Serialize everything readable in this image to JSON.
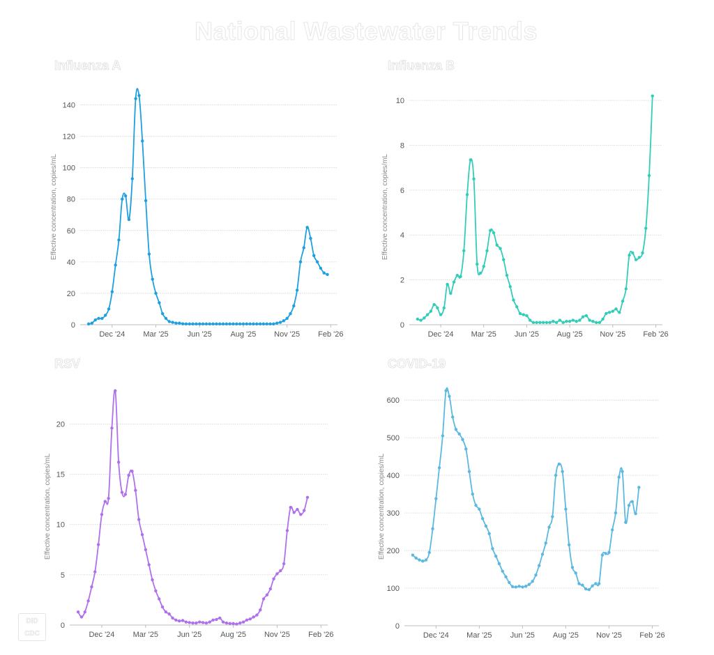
{
  "page": {
    "title": "National Wastewater Trends"
  },
  "logo": {
    "line1": "DID",
    "line2": "CDC"
  },
  "chart_data": [
    {
      "type": "line",
      "title": "Influenza A",
      "ylabel": "Effective concentration, copies/mL",
      "ylim": [
        0,
        150
      ],
      "yticks": [
        0,
        20,
        40,
        60,
        80,
        100,
        120,
        140
      ],
      "xticks": [
        {
          "label": "Dec '24",
          "t": 7.0
        },
        {
          "label": "Mar '25",
          "t": 20.0
        },
        {
          "label": "Jun '25",
          "t": 33.0
        },
        {
          "label": "Aug '25",
          "t": 46.0
        },
        {
          "label": "Nov '25",
          "t": 59.0
        },
        {
          "label": "Feb '26",
          "t": 72.0
        }
      ],
      "xlim": [
        -2.5,
        74
      ],
      "grid": true,
      "color": "#1ea0e0",
      "series": [
        {
          "values": [
            0.5,
            1,
            3,
            4,
            4,
            6,
            10,
            21,
            38,
            54,
            80,
            82,
            67,
            93,
            144,
            146,
            117,
            79,
            45,
            29,
            20,
            14,
            7,
            4,
            2,
            1.5,
            1,
            1,
            0.6,
            0.5,
            0.5,
            0.5,
            0.5,
            0.5,
            0.5,
            0.5,
            0.5,
            0.5,
            0.5,
            0.5,
            0.5,
            0.5,
            0.5,
            0.5,
            0.5,
            0.5,
            0.5,
            0.5,
            0.5,
            0.5,
            0.5,
            0.5,
            0.5,
            0.5,
            0.5,
            0.5,
            1,
            1.5,
            2.5,
            4,
            7,
            12,
            22,
            40,
            49,
            62,
            55,
            44,
            40,
            36,
            33,
            32
          ]
        }
      ]
    },
    {
      "type": "line",
      "title": "Influenza B",
      "ylabel": "Effective concentration, copies/mL",
      "ylim": [
        0,
        10.5
      ],
      "yticks": [
        0,
        2,
        4,
        6,
        8,
        10
      ],
      "xticks": [
        {
          "label": "Dec '24",
          "t": 7.0
        },
        {
          "label": "Mar '25",
          "t": 20.0
        },
        {
          "label": "Jun '25",
          "t": 33.0
        },
        {
          "label": "Aug '25",
          "t": 46.0
        },
        {
          "label": "Nov '25",
          "t": 59.0
        },
        {
          "label": "Feb '26",
          "t": 72.0
        }
      ],
      "xlim": [
        -2.5,
        74
      ],
      "grid": true,
      "color": "#32cdb9",
      "series": [
        {
          "values": [
            0.25,
            0.2,
            0.3,
            0.45,
            0.6,
            0.9,
            0.75,
            0.45,
            0.75,
            1.8,
            1.4,
            1.9,
            2.2,
            2.15,
            3.3,
            5.8,
            7.35,
            6.5,
            2.7,
            2.3,
            2.6,
            3.3,
            4.2,
            4.1,
            3.55,
            3.4,
            2.9,
            2.2,
            1.7,
            1.1,
            0.8,
            0.5,
            0.45,
            0.4,
            0.2,
            0.1,
            0.1,
            0.1,
            0.1,
            0.1,
            0.1,
            0.15,
            0.1,
            0.2,
            0.1,
            0.15,
            0.15,
            0.2,
            0.15,
            0.2,
            0.35,
            0.4,
            0.2,
            0.15,
            0.1,
            0.1,
            0.25,
            0.5,
            0.55,
            0.6,
            0.7,
            0.55,
            1.05,
            1.6,
            3.1,
            3.2,
            2.9,
            3.0,
            3.2,
            4.3,
            6.65,
            10.2
          ]
        }
      ]
    },
    {
      "type": "line",
      "title": "RSV",
      "ylabel": "Effective concentration, copies/mL",
      "ylim": [
        0,
        23.5
      ],
      "yticks": [
        0,
        5,
        10,
        15,
        20
      ],
      "xticks": [
        {
          "label": "Dec '24",
          "t": 7.0
        },
        {
          "label": "Mar '25",
          "t": 20.0
        },
        {
          "label": "Jun '25",
          "t": 33.0
        },
        {
          "label": "Aug '25",
          "t": 46.0
        },
        {
          "label": "Nov '25",
          "t": 59.0
        },
        {
          "label": "Feb '26",
          "t": 72.0
        }
      ],
      "xlim": [
        -2.5,
        74
      ],
      "grid": true,
      "color": "#b070ec",
      "series": [
        {
          "values": [
            1.3,
            0.8,
            1.3,
            2.4,
            3.8,
            5.3,
            8.0,
            11.0,
            12.3,
            12.6,
            19.6,
            23.3,
            16.2,
            13.2,
            13.0,
            14.9,
            15.3,
            13.4,
            10.5,
            9.0,
            7.5,
            6.0,
            4.5,
            3.4,
            2.6,
            1.8,
            1.3,
            1.1,
            0.7,
            0.5,
            0.4,
            0.45,
            0.3,
            0.25,
            0.2,
            0.2,
            0.3,
            0.25,
            0.2,
            0.3,
            0.5,
            0.55,
            0.7,
            0.3,
            0.2,
            0.15,
            0.15,
            0.1,
            0.2,
            0.3,
            0.5,
            0.6,
            0.8,
            1.0,
            1.5,
            2.6,
            3.0,
            3.6,
            4.6,
            5.1,
            5.4,
            6.1,
            9.4,
            11.7,
            11.2,
            11.5,
            11.0,
            11.4,
            12.7
          ]
        }
      ]
    },
    {
      "type": "line",
      "title": "COVID-19",
      "ylabel": "Effective concentration, copies/mL",
      "ylim": [
        0,
        630
      ],
      "yticks": [
        0,
        100,
        200,
        300,
        400,
        500,
        600
      ],
      "xticks": [
        {
          "label": "Dec '24",
          "t": 7.0
        },
        {
          "label": "Mar '25",
          "t": 20.0
        },
        {
          "label": "Jun '25",
          "t": 33.0
        },
        {
          "label": "Aug '25",
          "t": 46.0
        },
        {
          "label": "Nov '25",
          "t": 59.0
        },
        {
          "label": "Feb '26",
          "t": 72.0
        }
      ],
      "xlim": [
        -2.5,
        74
      ],
      "grid": true,
      "color": "#5bb8e0",
      "series": [
        {
          "values": [
            188,
            180,
            175,
            172,
            175,
            195,
            258,
            338,
            420,
            505,
            625,
            610,
            555,
            522,
            510,
            495,
            470,
            410,
            350,
            320,
            310,
            285,
            265,
            245,
            205,
            185,
            165,
            145,
            130,
            115,
            104,
            103,
            105,
            103,
            105,
            110,
            118,
            135,
            160,
            190,
            220,
            262,
            290,
            400,
            430,
            410,
            310,
            215,
            155,
            140,
            112,
            108,
            98,
            96,
            106,
            112,
            112,
            188,
            192,
            195,
            255,
            300,
            395,
            410,
            275,
            320,
            330,
            298,
            368
          ]
        }
      ]
    }
  ]
}
